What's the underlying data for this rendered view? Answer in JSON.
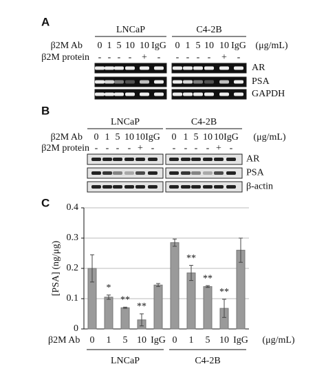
{
  "panels": [
    {
      "label": "A",
      "cell_lines": [
        "LNCaP",
        "C4-2B"
      ],
      "ab_label": "β2M Ab",
      "ab_doses": [
        "0",
        "1",
        "5",
        "10",
        "10",
        "IgG"
      ],
      "unit": "(μg/mL)",
      "protein_label": "β2M protein",
      "protein": [
        "-",
        "-",
        "-",
        "-",
        "+",
        "-"
      ],
      "bands": [
        "AR",
        "PSA",
        "GAPDH"
      ]
    },
    {
      "label": "B",
      "cell_lines": [
        "LNCaP",
        "C4-2B"
      ],
      "ab_label": "β2M Ab",
      "ab_doses": [
        "0",
        "1",
        "5",
        "10",
        "10",
        "IgG"
      ],
      "unit": "(μg/mL)",
      "protein_label": "β2M protein",
      "protein": [
        "-",
        "-",
        "-",
        "-",
        "+",
        "-"
      ],
      "bands": [
        "AR",
        "PSA",
        "β-actin"
      ]
    }
  ],
  "chart_data": {
    "type": "bar",
    "panel_label": "C",
    "ylabel": "[PSA] (ng/μg)",
    "x_label": "β2M Ab",
    "x_unit": "(μg/mL)",
    "groups": [
      "LNCaP",
      "C4-2B"
    ],
    "categories": [
      "0",
      "1",
      "5",
      "10",
      "IgG",
      "0",
      "1",
      "5",
      "10",
      "IgG"
    ],
    "values": [
      0.2,
      0.105,
      0.07,
      0.03,
      0.145,
      0.285,
      0.185,
      0.14,
      0.068,
      0.26
    ],
    "errors": [
      0.045,
      0.007,
      0.002,
      0.02,
      0.005,
      0.012,
      0.025,
      0.003,
      0.03,
      0.04
    ],
    "annotations": [
      null,
      "*",
      "**",
      "**",
      null,
      null,
      "**",
      "**",
      "**",
      null
    ],
    "color": "#9a9a9a",
    "ylim": [
      0,
      0.4
    ],
    "yticks": [
      0,
      0.1,
      0.2,
      0.3,
      0.4
    ],
    "grid": true
  }
}
